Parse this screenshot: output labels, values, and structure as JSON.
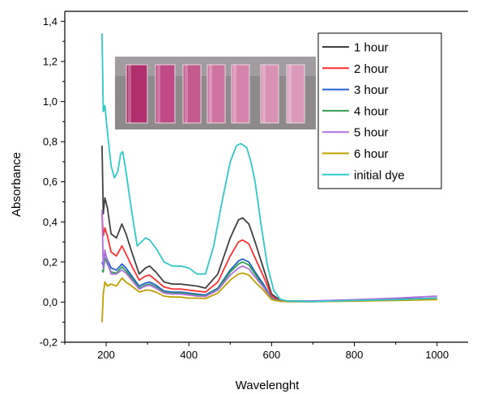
{
  "chart_data": {
    "type": "line",
    "title": "",
    "xlabel": "Wavelenght",
    "ylabel": "Absorbance",
    "xlim": [
      100,
      1075
    ],
    "ylim": [
      -0.2,
      1.45
    ],
    "xticks": [
      200,
      400,
      600,
      800,
      1000
    ],
    "yticks": [
      -0.2,
      0.0,
      0.2,
      0.4,
      0.6,
      0.8,
      1.0,
      1.2,
      1.4
    ],
    "tick_labels_x": [
      "200",
      "400",
      "600",
      "800",
      "1000"
    ],
    "tick_labels_y": [
      "-0,2",
      "0,0",
      "0,2",
      "0,4",
      "0,6",
      "0,8",
      "1,0",
      "1,2",
      "1,4"
    ],
    "grid": false,
    "legend_position": "top-right",
    "inset_image": "photo-of-dye-vials",
    "series": [
      {
        "name": "1 hour",
        "color": "#404040",
        "x": [
          190,
          193,
          197,
          203,
          212,
          225,
          238,
          248,
          262,
          280,
          295,
          305,
          320,
          340,
          360,
          380,
          400,
          420,
          440,
          470,
          500,
          520,
          530,
          545,
          560,
          580,
          600,
          620,
          640,
          700,
          800,
          900,
          1000
        ],
        "y": [
          0.78,
          0.44,
          0.52,
          0.47,
          0.34,
          0.32,
          0.39,
          0.34,
          0.25,
          0.14,
          0.17,
          0.18,
          0.15,
          0.1,
          0.09,
          0.09,
          0.085,
          0.08,
          0.07,
          0.14,
          0.32,
          0.41,
          0.42,
          0.39,
          0.3,
          0.17,
          0.04,
          0.01,
          0.005,
          0.005,
          0.01,
          0.015,
          0.02
        ]
      },
      {
        "name": "2 hour",
        "color": "#ff3030",
        "x": [
          190,
          193,
          197,
          203,
          212,
          225,
          238,
          248,
          262,
          280,
          295,
          305,
          320,
          340,
          360,
          380,
          400,
          420,
          440,
          470,
          500,
          520,
          530,
          545,
          560,
          580,
          600,
          620,
          640,
          700,
          800,
          900,
          1000
        ],
        "y": [
          0.44,
          0.33,
          0.37,
          0.33,
          0.25,
          0.23,
          0.28,
          0.24,
          0.18,
          0.11,
          0.13,
          0.135,
          0.11,
          0.075,
          0.065,
          0.065,
          0.06,
          0.055,
          0.05,
          0.1,
          0.23,
          0.3,
          0.31,
          0.29,
          0.22,
          0.13,
          0.03,
          0.008,
          0.004,
          0.004,
          0.008,
          0.012,
          0.02
        ]
      },
      {
        "name": "3 hour",
        "color": "#1f5fd0",
        "x": [
          190,
          193,
          197,
          203,
          212,
          225,
          238,
          248,
          262,
          280,
          295,
          305,
          320,
          340,
          360,
          380,
          400,
          420,
          440,
          470,
          500,
          520,
          530,
          545,
          560,
          580,
          600,
          620,
          640,
          700,
          800,
          900,
          1000
        ],
        "y": [
          0.2,
          0.18,
          0.25,
          0.21,
          0.17,
          0.16,
          0.19,
          0.17,
          0.13,
          0.08,
          0.095,
          0.1,
          0.085,
          0.055,
          0.05,
          0.05,
          0.045,
          0.04,
          0.035,
          0.07,
          0.16,
          0.205,
          0.215,
          0.2,
          0.15,
          0.09,
          0.02,
          0.006,
          0.003,
          0.003,
          0.007,
          0.012,
          0.02
        ]
      },
      {
        "name": "4 hour",
        "color": "#30a050",
        "x": [
          190,
          193,
          197,
          203,
          212,
          225,
          238,
          248,
          262,
          280,
          295,
          305,
          320,
          340,
          360,
          380,
          400,
          420,
          440,
          470,
          500,
          520,
          530,
          545,
          560,
          580,
          600,
          620,
          640,
          700,
          800,
          900,
          1000
        ],
        "y": [
          0.16,
          0.15,
          0.22,
          0.19,
          0.15,
          0.145,
          0.175,
          0.155,
          0.12,
          0.07,
          0.085,
          0.09,
          0.075,
          0.05,
          0.045,
          0.045,
          0.04,
          0.035,
          0.03,
          0.065,
          0.15,
          0.19,
          0.2,
          0.185,
          0.14,
          0.08,
          0.018,
          0.005,
          0.003,
          0.003,
          0.007,
          0.011,
          0.018
        ]
      },
      {
        "name": "5 hour",
        "color": "#b070e0",
        "x": [
          190,
          193,
          197,
          203,
          212,
          225,
          238,
          248,
          262,
          280,
          295,
          305,
          320,
          340,
          360,
          380,
          400,
          420,
          440,
          470,
          500,
          520,
          530,
          545,
          560,
          580,
          600,
          620,
          640,
          700,
          800,
          900,
          1000
        ],
        "y": [
          0.46,
          0.17,
          0.26,
          0.2,
          0.14,
          0.14,
          0.16,
          0.145,
          0.11,
          0.065,
          0.08,
          0.085,
          0.07,
          0.045,
          0.04,
          0.04,
          0.035,
          0.03,
          0.028,
          0.06,
          0.135,
          0.17,
          0.18,
          0.165,
          0.125,
          0.075,
          0.016,
          0.005,
          0.004,
          0.006,
          0.012,
          0.02,
          0.03
        ]
      },
      {
        "name": "6 hour",
        "color": "#c0a000",
        "x": [
          190,
          193,
          197,
          203,
          212,
          225,
          238,
          248,
          262,
          280,
          295,
          305,
          320,
          340,
          360,
          380,
          400,
          420,
          440,
          470,
          500,
          520,
          530,
          545,
          560,
          580,
          600,
          620,
          640,
          700,
          800,
          900,
          1000
        ],
        "y": [
          -0.1,
          0.04,
          0.1,
          0.08,
          0.09,
          0.08,
          0.12,
          0.1,
          0.08,
          0.05,
          0.06,
          0.06,
          0.05,
          0.03,
          0.025,
          0.025,
          0.02,
          0.02,
          0.018,
          0.045,
          0.11,
          0.14,
          0.145,
          0.135,
          0.1,
          0.06,
          0.012,
          0.004,
          0.002,
          0.002,
          0.005,
          0.008,
          0.012
        ]
      },
      {
        "name": "initial dye",
        "color": "#30c8c8",
        "x": [
          190,
          193,
          197,
          203,
          212,
          220,
          228,
          235,
          240,
          248,
          262,
          275,
          285,
          295,
          305,
          320,
          340,
          360,
          380,
          400,
          420,
          440,
          460,
          480,
          500,
          515,
          525,
          530,
          540,
          550,
          560,
          575,
          590,
          605,
          620,
          640,
          700,
          800,
          900,
          1000
        ],
        "y": [
          1.34,
          0.95,
          0.98,
          0.85,
          0.68,
          0.62,
          0.65,
          0.74,
          0.75,
          0.65,
          0.45,
          0.28,
          0.3,
          0.32,
          0.31,
          0.27,
          0.2,
          0.18,
          0.18,
          0.17,
          0.14,
          0.14,
          0.28,
          0.5,
          0.7,
          0.78,
          0.79,
          0.785,
          0.77,
          0.7,
          0.6,
          0.38,
          0.18,
          0.06,
          0.015,
          0.005,
          0.003,
          0.008,
          0.012,
          0.02
        ]
      }
    ]
  }
}
